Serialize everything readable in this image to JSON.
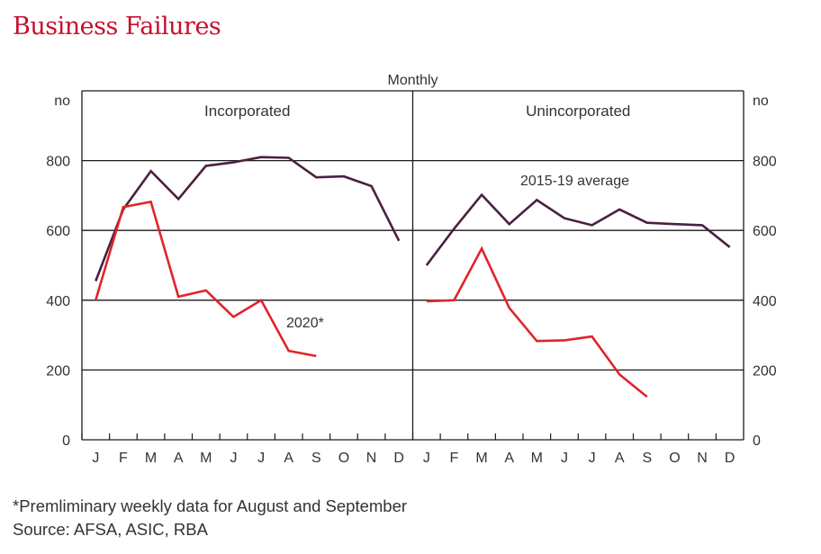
{
  "title": "Business Failures",
  "footnotes": {
    "line1": "*Premliminary weekly data for August and September",
    "line2": "Source: AFSA, ASIC, RBA"
  },
  "chart_data": {
    "type": "line",
    "frequency_label": "Monthly",
    "ylabel_left": "no",
    "ylabel_right": "no",
    "ylim": [
      0,
      1000
    ],
    "yticks": [
      0,
      200,
      400,
      600,
      800
    ],
    "grid": true,
    "colors": {
      "average": "#4a2040",
      "year2020": "#e0242a"
    },
    "panels": [
      {
        "title": "Incorporated",
        "categories": [
          "J",
          "F",
          "M",
          "A",
          "M",
          "J",
          "J",
          "A",
          "S",
          "O",
          "N",
          "D"
        ],
        "series": [
          {
            "key": "average",
            "values": [
              455,
              660,
              770,
              690,
              785,
              795,
              810,
              808,
              752,
              755,
              727,
              570
            ]
          },
          {
            "key": "year2020",
            "values": [
              400,
              667,
              682,
              410,
              428,
              352,
              400,
              255,
              240
            ]
          }
        ],
        "annotations": [
          {
            "text": "2020*",
            "series": "year2020"
          }
        ]
      },
      {
        "title": "Unincorporated",
        "categories": [
          "J",
          "F",
          "M",
          "A",
          "M",
          "J",
          "J",
          "A",
          "S",
          "O",
          "N",
          "D"
        ],
        "series": [
          {
            "key": "average",
            "values": [
              500,
              605,
              702,
              618,
              687,
              635,
              615,
              660,
              622,
              618,
              615,
              552
            ]
          },
          {
            "key": "year2020",
            "values": [
              397,
              400,
              548,
              378,
              283,
              285,
              296,
              187,
              123
            ]
          }
        ],
        "annotations": [
          {
            "text": "2015-19 average",
            "series": "average"
          }
        ]
      }
    ]
  }
}
